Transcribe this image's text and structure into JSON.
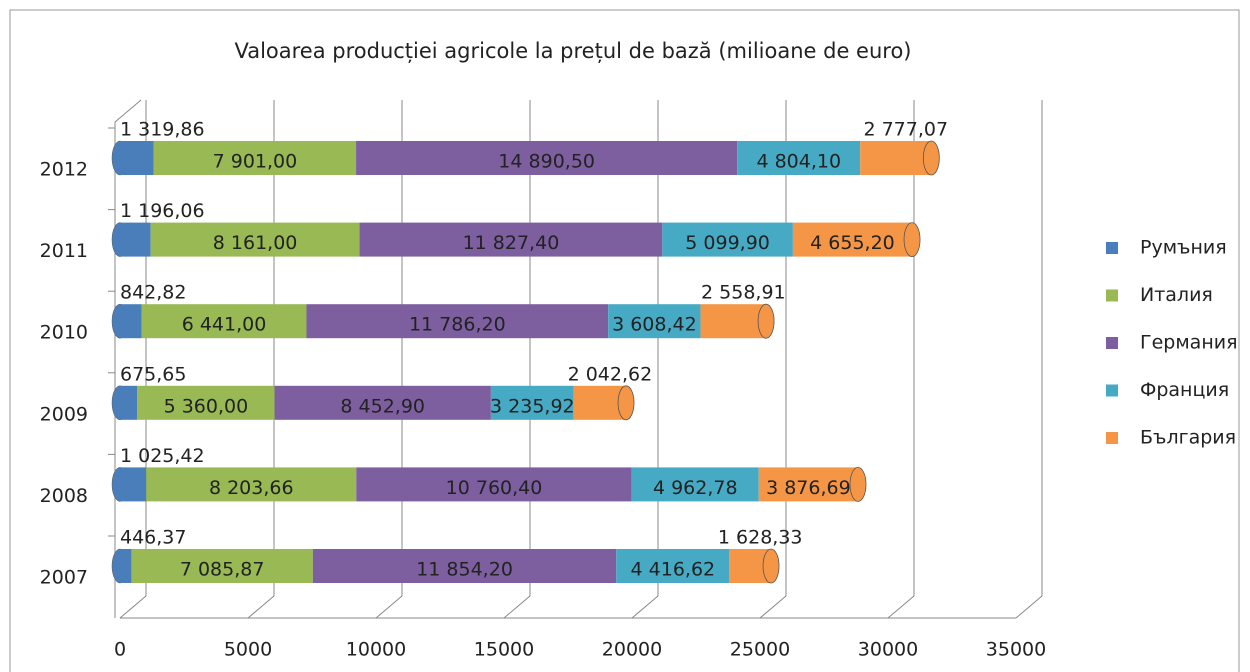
{
  "chart_data": {
    "type": "bar",
    "orientation": "horizontal",
    "stacked": true,
    "title": "Valoarea producției agricole  la prețul de bază (milioane de euro)",
    "categories": [
      "2007",
      "2008",
      "2009",
      "2010",
      "2011",
      "2012"
    ],
    "series": [
      {
        "name": "Румъния",
        "color": "#4a7ebb",
        "values": [
          446.37,
          1025.42,
          675.65,
          842.82,
          1196.06,
          1319.86
        ],
        "value_labels": [
          "446,37",
          "1 025,42",
          "675,65",
          "842,82",
          "1 196,06",
          "1 319,86"
        ]
      },
      {
        "name": "Италия",
        "color": "#98b954",
        "values": [
          7085.87,
          8203.66,
          5360.0,
          6441.0,
          8161.0,
          7901.0
        ],
        "value_labels": [
          "7 085,87",
          "8 203,66",
          "5 360,00",
          "6 441,00",
          "8 161,00",
          "7 901,00"
        ]
      },
      {
        "name": "Германия",
        "color": "#7d5fa0",
        "values": [
          11854.2,
          10760.4,
          8452.9,
          11786.2,
          11827.4,
          14890.5
        ],
        "value_labels": [
          "11 854,20",
          "10 760,40",
          "8 452,90",
          "11 786,20",
          "11 827,40",
          "14 890,50"
        ]
      },
      {
        "name": "Франция",
        "color": "#46aac5",
        "values": [
          4416.62,
          4962.78,
          3235.92,
          3608.42,
          5099.9,
          4804.1
        ],
        "value_labels": [
          "4 416,62",
          "4 962,78",
          "3 235,92",
          "3 608,42",
          "5 099,90",
          "4 804,10"
        ]
      },
      {
        "name": "България",
        "color": "#f59646",
        "values": [
          1628.33,
          3876.69,
          2042.62,
          2558.91,
          4655.2,
          2777.07
        ],
        "value_labels": [
          "1 628,33",
          "3 876,69",
          "2 042,62",
          "2 558,91",
          "4 655,20",
          "2 777,07"
        ]
      }
    ],
    "xlim": [
      0,
      35000
    ],
    "xticks": [
      0,
      5000,
      10000,
      15000,
      20000,
      25000,
      30000,
      35000
    ],
    "grid": true,
    "legend": "right"
  }
}
